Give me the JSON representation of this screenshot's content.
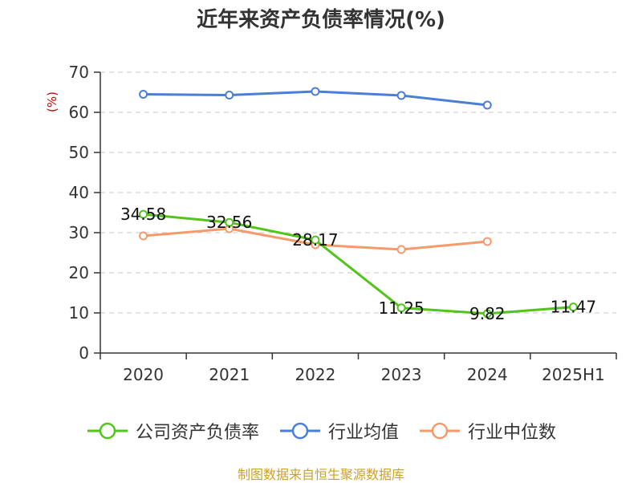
{
  "chart_data": {
    "type": "line",
    "title": "近年来资产负债率情况(%)",
    "ylabel": "(%)",
    "categories": [
      "2020",
      "2021",
      "2022",
      "2023",
      "2024",
      "2025H1"
    ],
    "ylim": [
      0,
      70
    ],
    "yticks": [
      "0",
      "10",
      "20",
      "30",
      "40",
      "50",
      "60",
      "70"
    ],
    "grid": true,
    "legend_position": "bottom",
    "series": [
      {
        "name": "公司资产负债率",
        "color": "#52c41a",
        "values": [
          34.58,
          32.56,
          28.17,
          11.25,
          9.82,
          11.47
        ],
        "labels": [
          "34.58",
          "32.56",
          "28.17",
          "11.25",
          "9.82",
          "11.47"
        ]
      },
      {
        "name": "行业均值",
        "color": "#4a7fd6",
        "values": [
          64.5,
          64.3,
          65.2,
          64.2,
          61.8,
          null
        ]
      },
      {
        "name": "行业中位数",
        "color": "#f59b6b",
        "values": [
          29.2,
          31.0,
          27.0,
          25.8,
          27.8,
          null
        ]
      }
    ]
  },
  "footer": {
    "source": "制图数据来自恒生聚源数据库"
  }
}
